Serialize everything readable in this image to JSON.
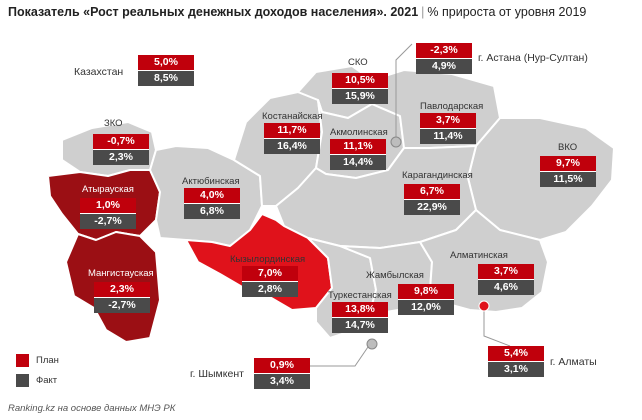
{
  "title": {
    "main": "Показатель «Рост реальных денежных доходов населения». 2021",
    "unit": "% прироста от уровня 2019"
  },
  "colors": {
    "plan": "#c0000c",
    "fact": "#4a4a4a",
    "region_default": "#cfcfcf",
    "region_negative": "#9b0f14",
    "region_highlight": "#e0121b"
  },
  "regions": {
    "kazakhstan": {
      "name": "Казахстан",
      "plan": "5,0%",
      "fact": "8,5%"
    },
    "sko": {
      "name": "СКО",
      "plan": "10,5%",
      "fact": "15,9%"
    },
    "astana": {
      "name": "г. Астана (Нур-Султан)",
      "plan": "-2,3%",
      "fact": "4,9%"
    },
    "kostanay": {
      "name": "Костанайская",
      "plan": "11,7%",
      "fact": "16,4%"
    },
    "akmola": {
      "name": "Акмолинская",
      "plan": "11,1%",
      "fact": "14,4%"
    },
    "pavlodar": {
      "name": "Павлодарская",
      "plan": "3,7%",
      "fact": "11,4%"
    },
    "zko": {
      "name": "ЗКО",
      "plan": "-0,7%",
      "fact": "2,3%"
    },
    "vko": {
      "name": "ВКО",
      "plan": "9,7%",
      "fact": "11,5%"
    },
    "atyrau": {
      "name": "Атырауская",
      "plan": "1,0%",
      "fact": "-2,7%"
    },
    "aktobe": {
      "name": "Актюбинская",
      "plan": "4,0%",
      "fact": "6,8%"
    },
    "karaganda": {
      "name": "Карагандинская",
      "plan": "6,7%",
      "fact": "22,9%"
    },
    "mangystau": {
      "name": "Мангистауская",
      "plan": "2,3%",
      "fact": "-2,7%"
    },
    "kyzylorda": {
      "name": "Кызылординская",
      "plan": "7,0%",
      "fact": "2,8%"
    },
    "almaty_region": {
      "name": "Алматинская",
      "plan": "3,7%",
      "fact": "4,6%"
    },
    "zhambyl": {
      "name": "Жамбылская",
      "plan": "9,8%",
      "fact": "12,0%"
    },
    "turkestan": {
      "name": "Туркестанская",
      "plan": "13,8%",
      "fact": "14,7%"
    },
    "shymkent": {
      "name": "г. Шымкент",
      "plan": "0,9%",
      "fact": "3,4%"
    },
    "almaty_city": {
      "name": "г. Алматы",
      "plan": "5,4%",
      "fact": "3,1%"
    }
  },
  "legend": {
    "plan": "План",
    "fact": "Факт"
  },
  "source": "Ranking.kz на основе данных МНЭ РК"
}
